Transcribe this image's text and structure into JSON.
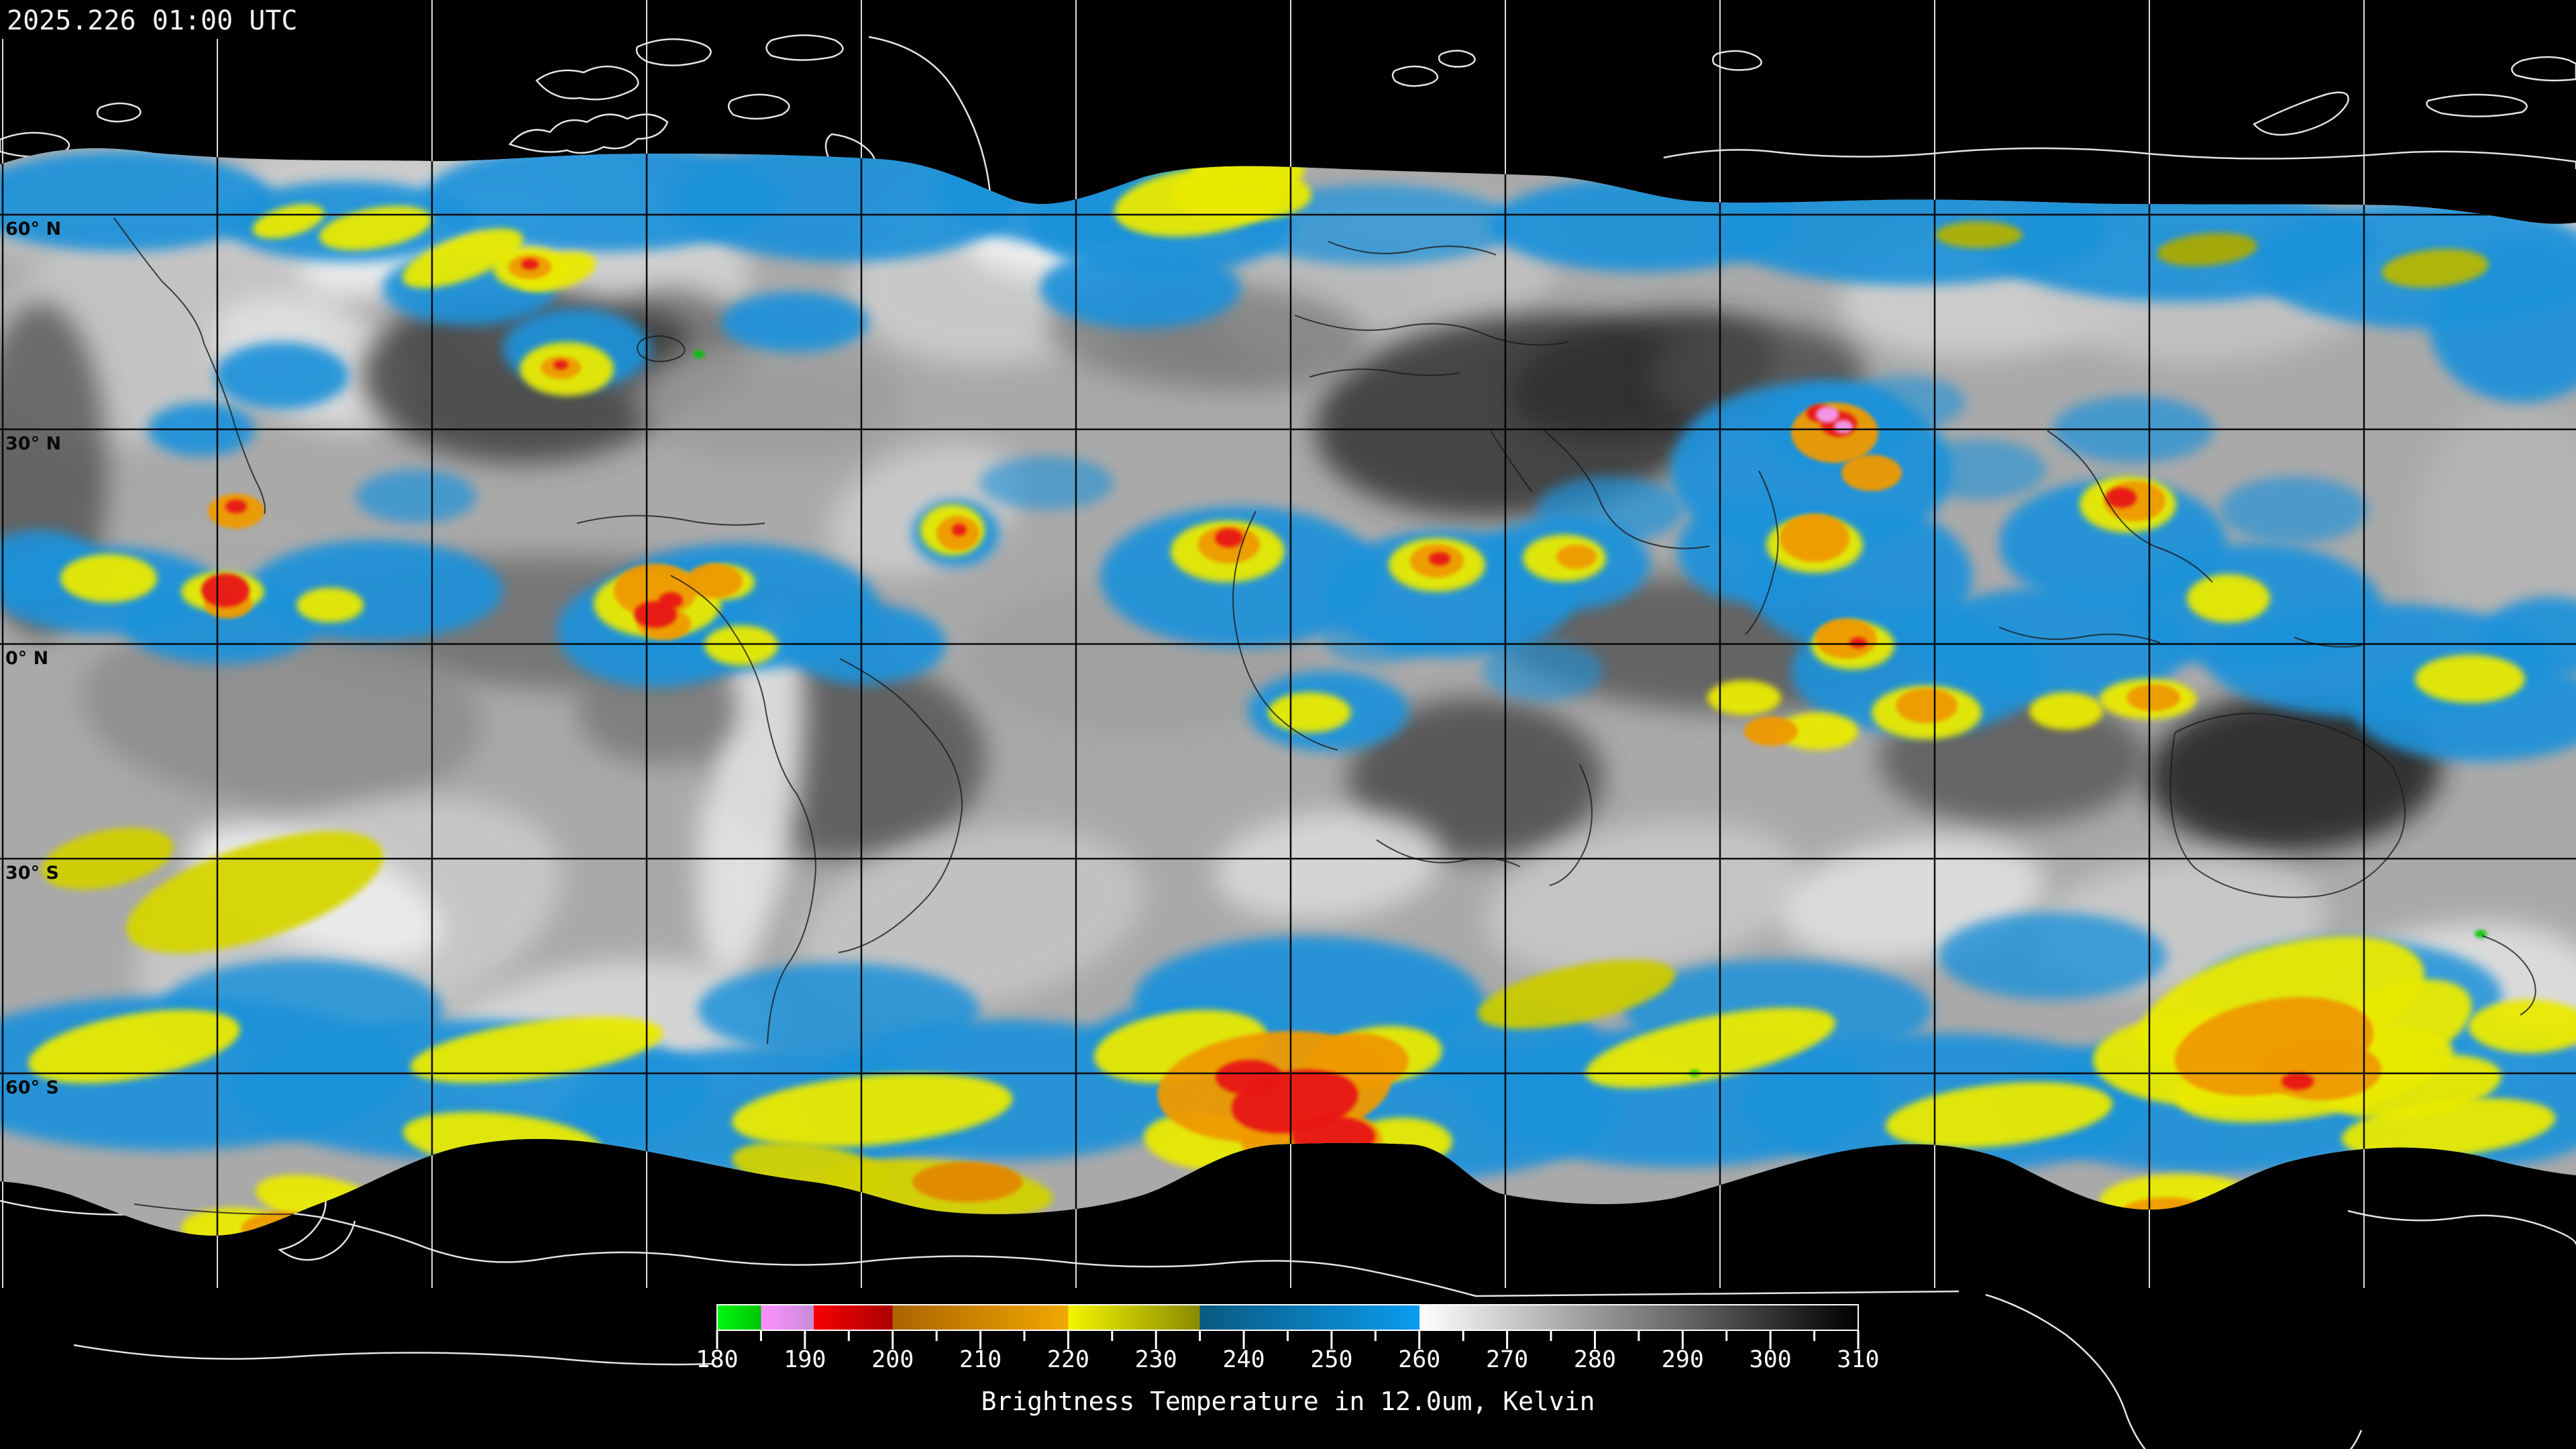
{
  "timestamp": "2025.226 01:00 UTC",
  "map": {
    "latitude_labels": [
      {
        "deg": 60,
        "label": "60° N"
      },
      {
        "deg": 30,
        "label": "30° N"
      },
      {
        "deg": 0,
        "label": "0° N"
      },
      {
        "deg": -30,
        "label": "30° S"
      },
      {
        "deg": -60,
        "label": "60° S"
      }
    ],
    "latitude_gridline_spacing_deg": 30,
    "longitude_gridline_spacing_deg": 30
  },
  "colorbar": {
    "title": "Brightness Temperature in 12.0um, Kelvin",
    "units": "Kelvin",
    "min_k": 180,
    "max_k": 310,
    "major_tick_step_k": 10,
    "minor_tick_step_k": 5,
    "tick_labels": [
      "180",
      "190",
      "200",
      "210",
      "220",
      "230",
      "240",
      "250",
      "260",
      "270",
      "280",
      "290",
      "300",
      "310"
    ],
    "segments": [
      {
        "name": "green",
        "from_k": 180,
        "to_k": 185,
        "color_start": "#00f810",
        "color_end": "#00c400"
      },
      {
        "name": "violet",
        "from_k": 185,
        "to_k": 191,
        "color_start": "#ff90ff",
        "color_end": "#c88cd8"
      },
      {
        "name": "red",
        "from_k": 191,
        "to_k": 200,
        "color_start": "#f80000",
        "color_end": "#ac0000"
      },
      {
        "name": "orange",
        "from_k": 200,
        "to_k": 220,
        "color_start": "#a96400",
        "color_end": "#f2a800"
      },
      {
        "name": "yellow",
        "from_k": 220,
        "to_k": 235,
        "color_start": "#f4f400",
        "color_end": "#8a8a00"
      },
      {
        "name": "blue",
        "from_k": 235,
        "to_k": 260,
        "color_start": "#0a5a80",
        "color_end": "#0a9cf0"
      },
      {
        "name": "grayscale",
        "from_k": 260,
        "to_k": 310,
        "color_start": "#ffffff",
        "color_end": "#000000"
      }
    ]
  }
}
